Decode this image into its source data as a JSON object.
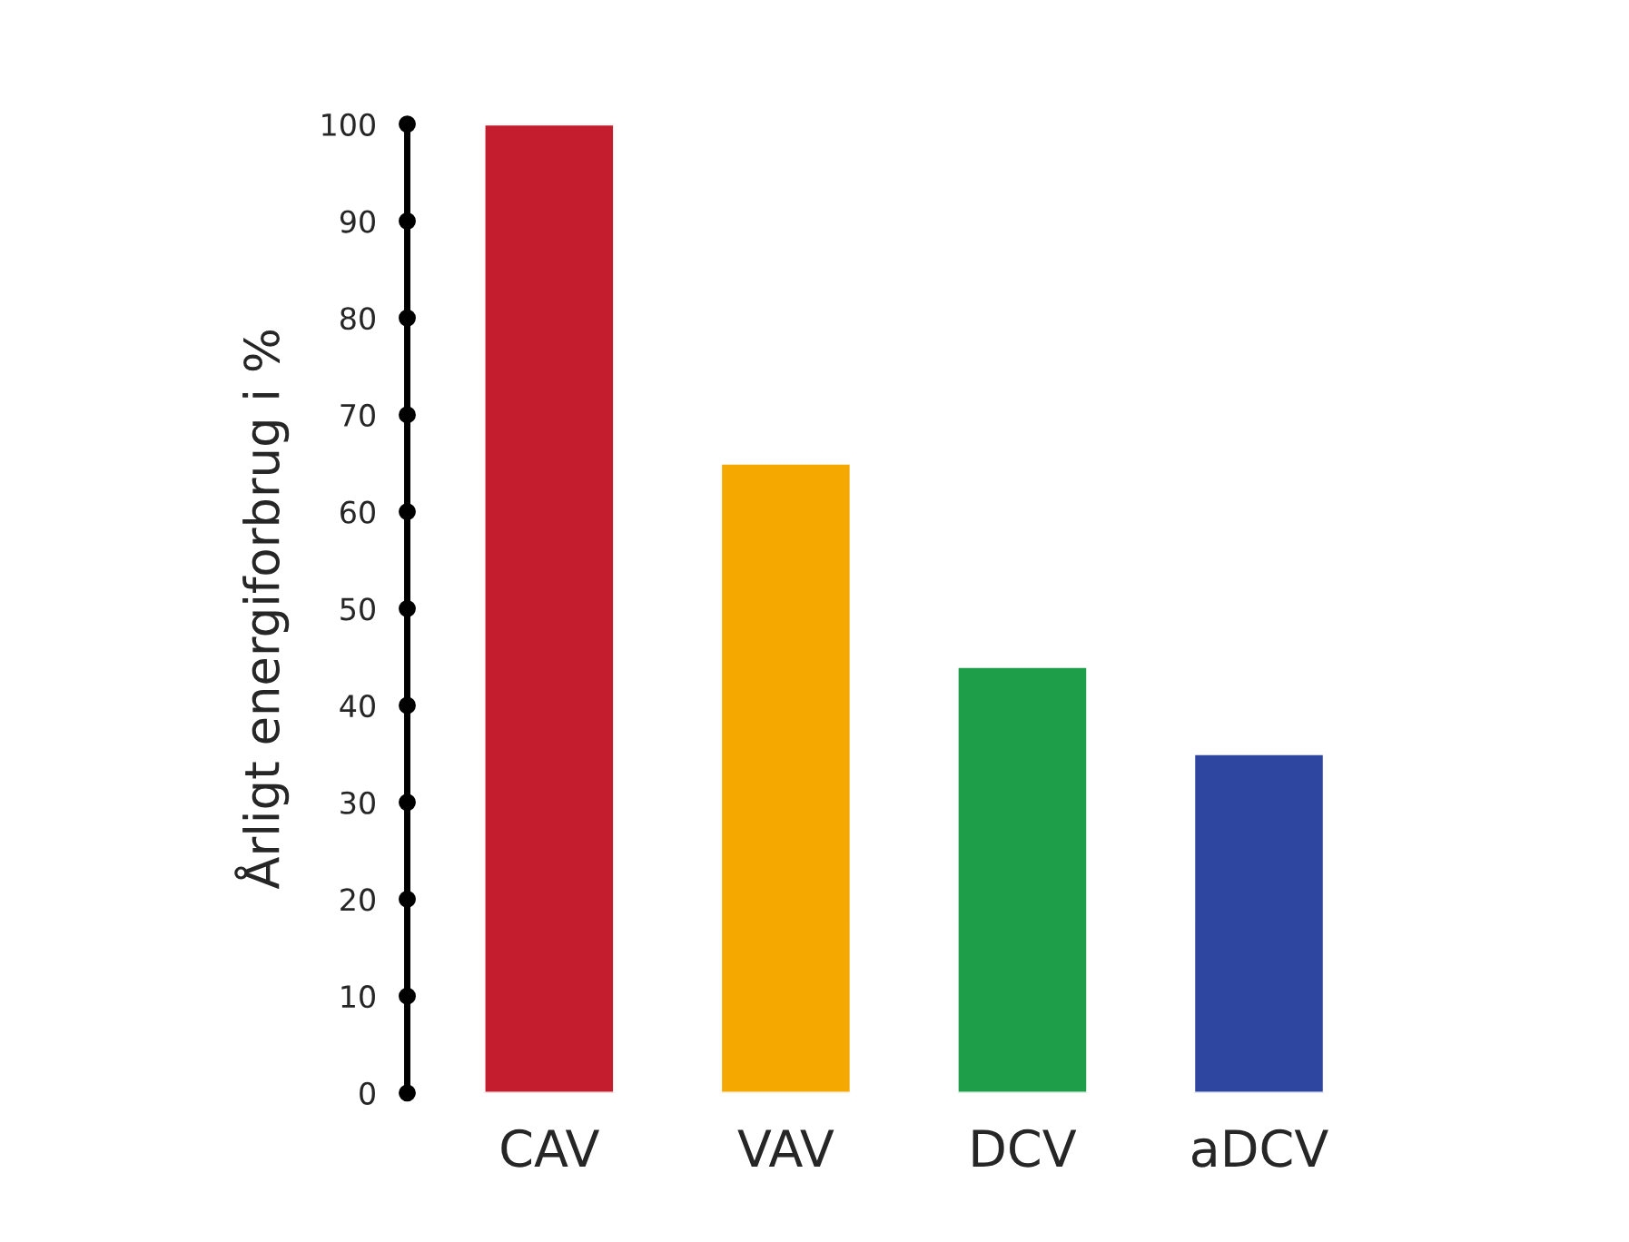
{
  "chart_data": {
    "type": "bar",
    "ylabel": "Årligt energiforbrug i %",
    "categories": [
      "CAV",
      "VAV",
      "DCV",
      "aDCV"
    ],
    "values": [
      100,
      65,
      44,
      35
    ],
    "colors": [
      "#c41d2e",
      "#f5a800",
      "#1f9e4a",
      "#2e46a0"
    ],
    "ylim": [
      0,
      100
    ],
    "yticks": [
      0,
      10,
      20,
      30,
      40,
      50,
      60,
      70,
      80,
      90,
      100
    ],
    "grid": false,
    "legend": false
  }
}
